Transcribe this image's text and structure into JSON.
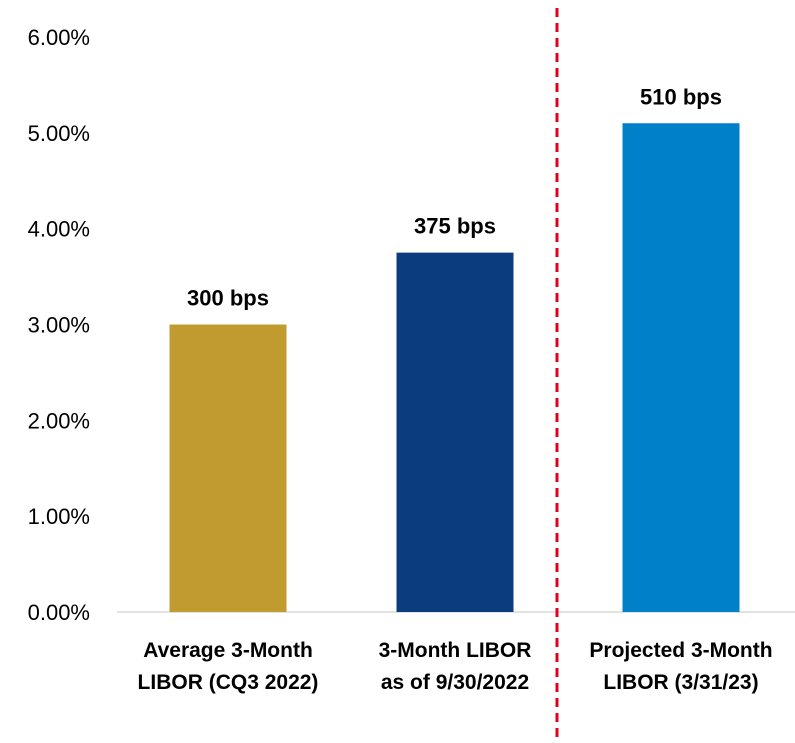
{
  "chart_data": {
    "type": "bar",
    "categories": [
      [
        "Average 3-Month",
        "LIBOR (CQ3 2022)"
      ],
      [
        "3-Month LIBOR",
        "as of 9/30/2022"
      ],
      [
        "Projected 3-Month",
        "LIBOR (3/31/23)"
      ]
    ],
    "values": [
      3.0,
      3.75,
      5.1
    ],
    "data_labels": [
      "300 bps",
      "375 bps",
      "510 bps"
    ],
    "bar_colors": [
      "#c29b30",
      "#0b3d7e",
      "#0080c8"
    ],
    "ylim": [
      0,
      6
    ],
    "y_ticks": [
      0,
      1,
      2,
      3,
      4,
      5,
      6
    ],
    "y_tick_labels": [
      "0.00%",
      "1.00%",
      "2.00%",
      "3.00%",
      "4.00%",
      "5.00%",
      "6.00%"
    ],
    "grid": false,
    "title": "",
    "xlabel": "",
    "ylabel": "",
    "divider": {
      "after_category_index": 1,
      "color": "#e2001a",
      "style": "dashed"
    }
  }
}
